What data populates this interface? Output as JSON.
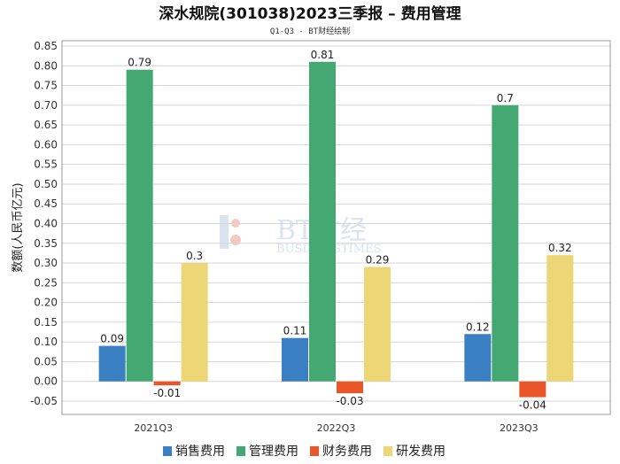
{
  "title": "深水规院(301038)2023三季报 – 费用管理",
  "subtitle": "Q1-Q3 - BT财经绘制",
  "watermark": {
    "main": "BT财经",
    "sub": "BUSINESSTIMES"
  },
  "chart_data": {
    "type": "bar",
    "categories": [
      "2021Q3",
      "2022Q3",
      "2023Q3"
    ],
    "ylabel": "数额(人民币亿元)",
    "ylim": [
      -0.05,
      0.85
    ],
    "yticks": [
      "0.85",
      "0.80",
      "0.75",
      "0.70",
      "0.65",
      "0.60",
      "0.55",
      "0.50",
      "0.45",
      "0.40",
      "0.35",
      "0.30",
      "0.25",
      "0.20",
      "0.15",
      "0.10",
      "0.05",
      "0.00",
      "-0.05"
    ],
    "grid": true,
    "legend_position": "bottom",
    "series": [
      {
        "name": "销售费用",
        "color": "#3a7fc1",
        "values": [
          0.09,
          0.11,
          0.12
        ],
        "labels": [
          "0.09",
          "0.11",
          "0.12"
        ]
      },
      {
        "name": "管理费用",
        "color": "#44a872",
        "values": [
          0.79,
          0.81,
          0.7
        ],
        "labels": [
          "0.79",
          "0.81",
          "0.7"
        ]
      },
      {
        "name": "财务费用",
        "color": "#e8562a",
        "values": [
          -0.01,
          -0.03,
          -0.04
        ],
        "labels": [
          "-0.01",
          "-0.03",
          "-0.04"
        ]
      },
      {
        "name": "研发费用",
        "color": "#ecd676",
        "values": [
          0.3,
          0.29,
          0.32
        ],
        "labels": [
          "0.3",
          "0.29",
          "0.32"
        ]
      }
    ]
  }
}
